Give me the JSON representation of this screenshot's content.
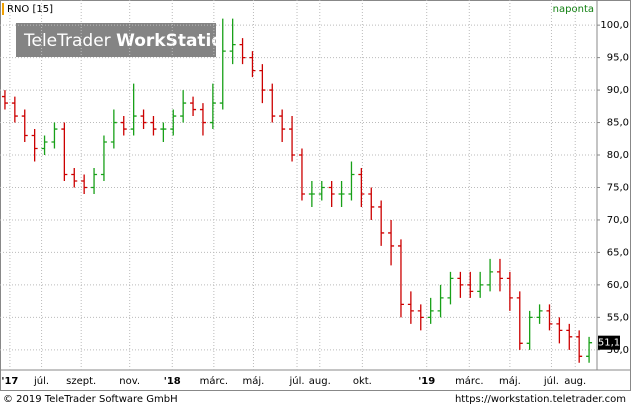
{
  "chart_data": {
    "type": "ohlc",
    "title": "RNO [15]",
    "interval": "naponta",
    "watermark": {
      "brand": "TeleTrader",
      "product": "WorkStation"
    },
    "footer_left": "© 2019 TeleTrader Software GmbH",
    "footer_right": "https://workstation.teletrader.com",
    "up_color": "#18a018",
    "down_color": "#cc0000",
    "grid": true,
    "xlim": [
      -0.5,
      59.8
    ],
    "ylim": [
      47.2,
      101.1
    ],
    "xticks": [
      {
        "value": 0.5,
        "label": "'17"
      },
      {
        "value": 3.7,
        "label": "júl."
      },
      {
        "value": 7.7,
        "label": "szept."
      },
      {
        "value": 12.6,
        "label": "nov."
      },
      {
        "value": 16.9,
        "label": "'18"
      },
      {
        "value": 21.1,
        "label": "márc."
      },
      {
        "value": 25.1,
        "label": "máj."
      },
      {
        "value": 29.5,
        "label": "júl."
      },
      {
        "value": 31.8,
        "label": "aug."
      },
      {
        "value": 36.1,
        "label": "okt."
      },
      {
        "value": 42.6,
        "label": "'19"
      },
      {
        "value": 46.9,
        "label": "márc."
      },
      {
        "value": 51.0,
        "label": "máj."
      },
      {
        "value": 55.2,
        "label": "júl."
      },
      {
        "value": 57.6,
        "label": "aug."
      }
    ],
    "yticks": [
      {
        "value": 50,
        "label": "50,0"
      },
      {
        "value": 55,
        "label": "55,0"
      },
      {
        "value": 60,
        "label": "60,0"
      },
      {
        "value": 65,
        "label": "65,0"
      },
      {
        "value": 70,
        "label": "70,0"
      },
      {
        "value": 75,
        "label": "75,0"
      },
      {
        "value": 80,
        "label": "80,0"
      },
      {
        "value": 85,
        "label": "85,0"
      },
      {
        "value": 90,
        "label": "90,0"
      },
      {
        "value": 95,
        "label": "95,0"
      },
      {
        "value": 100,
        "label": "100,0"
      }
    ],
    "open": [
      89,
      88,
      86,
      83,
      81,
      82,
      84,
      77,
      76,
      75,
      77,
      82,
      85,
      84,
      86,
      85,
      84,
      84,
      86,
      88,
      87,
      85,
      88,
      96,
      97,
      95,
      93,
      90,
      86,
      84,
      80,
      74,
      74,
      75,
      74,
      74,
      77,
      74,
      72,
      68,
      66,
      57,
      56,
      55,
      56,
      58,
      61,
      60,
      59,
      60,
      62,
      61,
      58,
      51,
      55,
      56,
      54,
      53,
      52,
      49
    ],
    "high": [
      90,
      89,
      87,
      84,
      83,
      85,
      85,
      78,
      77,
      78,
      83,
      87,
      86,
      91,
      87,
      86,
      85,
      87,
      90,
      89,
      88,
      91,
      101,
      101,
      98,
      96,
      94,
      91,
      87,
      86,
      81,
      76,
      76,
      76,
      76,
      79,
      78,
      75,
      73,
      70,
      67,
      59,
      57,
      58,
      60,
      62,
      62,
      62,
      62,
      64,
      64,
      62,
      59,
      56,
      57,
      57,
      55,
      54,
      53,
      52
    ],
    "low": [
      87,
      85,
      82,
      79,
      80,
      81,
      76,
      75,
      74,
      74,
      76,
      81,
      83,
      83,
      84,
      83,
      82,
      83,
      85,
      86,
      83,
      84,
      87,
      94,
      94,
      92,
      88,
      85,
      82,
      79,
      73,
      72,
      73,
      72,
      72,
      73,
      72,
      70,
      66,
      63,
      55,
      54,
      53,
      54,
      55,
      57,
      58,
      58,
      58,
      59,
      59,
      56,
      50,
      50,
      54,
      53,
      51,
      50,
      48,
      48
    ],
    "close": [
      88,
      86,
      83,
      81,
      82,
      84,
      77,
      76,
      75,
      77,
      82,
      85,
      84,
      86,
      85,
      84,
      84,
      86,
      88,
      87,
      85,
      88,
      96,
      97,
      95,
      93,
      90,
      86,
      84,
      80,
      74,
      74,
      75,
      74,
      74,
      77,
      74,
      72,
      68,
      66,
      57,
      56,
      55,
      56,
      58,
      61,
      60,
      59,
      60,
      62,
      61,
      58,
      51,
      55,
      56,
      54,
      53,
      52,
      49,
      51.1
    ],
    "last_close_label": "51,1"
  }
}
